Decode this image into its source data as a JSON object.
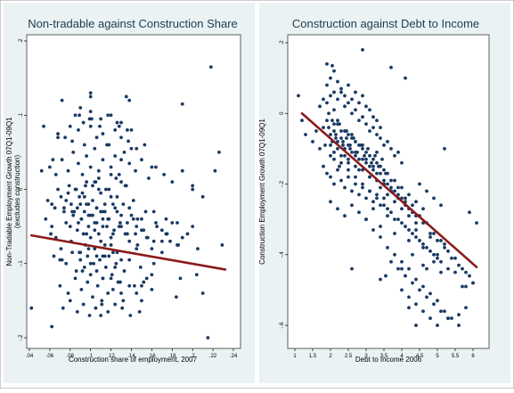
{
  "chart_data": [
    {
      "type": "scatter",
      "title": "Non-tradable against Construction Share",
      "xlabel": "Construction share of employment, 2007",
      "ylabel": "Non-Tradable Employment Growth 07Q1-09Q1",
      "ylabel2": "(excludes construction)",
      "xlim": [
        0.04,
        0.24
      ],
      "ylim": [
        -0.2,
        0.2
      ],
      "xticks": [
        0.04,
        0.06,
        0.08,
        0.1,
        0.12,
        0.14,
        0.16,
        0.18,
        0.2,
        0.22,
        0.24
      ],
      "xtick_labels": [
        ".04",
        ".06",
        ".08",
        ".1",
        ".12",
        ".14",
        ".16",
        ".18",
        ".2",
        ".22",
        ".24"
      ],
      "yticks": [
        -0.2,
        -0.1,
        0,
        0.1,
        0.2
      ],
      "ytick_labels": [
        "-.2",
        "-.1",
        "0",
        ".1",
        ".2"
      ],
      "grid": false,
      "fit_line": {
        "x": [
          0.042,
          0.232
        ],
        "y": [
          -0.062,
          -0.108
        ]
      },
      "x": [
        0.042,
        0.054,
        0.062,
        0.11,
        0.135,
        0.138,
        0.215,
        0.229,
        0.184,
        0.218,
        0.21,
        0.226,
        0.204,
        0.2,
        0.19,
        0.072,
        0.072,
        0.08,
        0.222,
        0.111,
        0.1,
        0.174,
        0.188,
        0.052,
        0.056,
        0.063,
        0.068,
        0.16,
        0.15,
        0.2,
        0.15,
        0.145,
        0.14,
        0.16,
        0.13,
        0.12,
        0.061,
        0.089,
        0.092,
        0.099,
        0.104,
        0.1,
        0.128,
        0.13,
        0.14,
        0.062,
        0.066,
        0.071,
        0.076,
        0.081,
        0.084,
        0.087,
        0.089,
        0.091,
        0.093,
        0.095,
        0.096,
        0.098,
        0.1,
        0.102,
        0.104,
        0.106,
        0.108,
        0.11,
        0.112,
        0.114,
        0.116,
        0.118,
        0.12,
        0.122,
        0.124,
        0.126,
        0.13,
        0.134,
        0.138,
        0.142,
        0.146,
        0.15,
        0.155,
        0.16,
        0.165,
        0.17,
        0.175,
        0.18,
        0.185,
        0.19,
        0.058,
        0.062,
        0.065,
        0.068,
        0.071,
        0.074,
        0.076,
        0.079,
        0.081,
        0.083,
        0.085,
        0.087,
        0.089,
        0.091,
        0.092,
        0.094,
        0.096,
        0.098,
        0.1,
        0.102,
        0.104,
        0.106,
        0.108,
        0.11,
        0.112,
        0.114,
        0.117,
        0.12,
        0.123,
        0.126,
        0.129,
        0.132,
        0.136,
        0.14,
        0.145,
        0.15,
        0.156,
        0.162,
        0.17,
        0.178,
        0.185,
        0.195,
        0.205,
        0.064,
        0.07,
        0.076,
        0.082,
        0.086,
        0.09,
        0.094,
        0.097,
        0.1,
        0.103,
        0.106,
        0.109,
        0.112,
        0.115,
        0.118,
        0.121,
        0.125,
        0.129,
        0.133,
        0.138,
        0.143,
        0.149,
        0.155,
        0.162,
        0.17,
        0.06,
        0.066,
        0.072,
        0.078,
        0.083,
        0.088,
        0.092,
        0.096,
        0.1,
        0.104,
        0.108,
        0.112,
        0.116,
        0.12,
        0.124,
        0.128,
        0.133,
        0.138,
        0.144,
        0.15,
        0.157,
        0.164,
        0.172,
        0.18,
        0.19,
        0.2,
        0.21,
        0.07,
        0.078,
        0.085,
        0.091,
        0.097,
        0.102,
        0.107,
        0.112,
        0.117,
        0.122,
        0.127,
        0.132,
        0.138,
        0.145,
        0.152,
        0.16,
        0.068,
        0.075,
        0.082,
        0.088,
        0.094,
        0.1,
        0.106,
        0.112,
        0.118,
        0.124,
        0.13,
        0.137,
        0.145,
        0.153,
        0.073,
        0.08,
        0.087,
        0.093,
        0.099,
        0.105,
        0.111,
        0.117,
        0.124,
        0.131,
        0.139,
        0.148,
        0.085,
        0.093,
        0.101,
        0.109,
        0.117,
        0.126,
        0.136,
        0.09,
        0.1,
        0.11,
        0.12,
        0.13,
        0.08,
        0.088,
        0.096,
        0.104,
        0.112,
        0.12,
        0.128,
        0.136,
        0.144,
        0.152,
        0.162,
        0.174,
        0.186,
        0.074,
        0.082,
        0.09,
        0.098,
        0.106,
        0.114,
        0.122,
        0.13,
        0.138,
        0.146,
        0.154,
        0.164,
        0.078,
        0.086,
        0.094,
        0.102,
        0.11,
        0.118,
        0.126,
        0.134,
        0.142,
        0.09,
        0.098,
        0.106,
        0.114,
        0.122,
        0.13,
        0.095,
        0.105,
        0.115,
        0.125,
        0.135,
        0.1,
        0.112,
        0.124,
        0.108,
        0.12,
        0.13
      ],
      "y": [
        -0.16,
        0.085,
        -0.185,
        -0.17,
        0.125,
        0.12,
        -0.2,
        -0.075,
        -0.145,
        0.165,
        -0.14,
        0.05,
        -0.115,
        -0.05,
        0.115,
        0.12,
        -0.095,
        0.085,
        0.025,
        -0.155,
        0.125,
        -0.04,
        -0.12,
        0.025,
        -0.04,
        0.04,
        0.07,
        -0.115,
        -0.13,
        0.0,
        -0.15,
        -0.08,
        0.08,
        0.03,
        -0.14,
        -0.12,
        -0.06,
        0.1,
        -0.11,
        0.095,
        0.01,
        0.13,
        0.085,
        0.04,
        0.055,
        -0.05,
        -0.065,
        -0.08,
        -0.045,
        -0.07,
        -0.03,
        -0.055,
        -0.085,
        -0.04,
        -0.06,
        -0.075,
        -0.02,
        -0.05,
        -0.065,
        -0.035,
        -0.08,
        -0.045,
        -0.06,
        -0.07,
        -0.03,
        -0.09,
        -0.05,
        -0.04,
        -0.075,
        -0.06,
        -0.025,
        -0.085,
        -0.05,
        -0.06,
        -0.07,
        -0.04,
        -0.075,
        -0.055,
        -0.065,
        -0.08,
        -0.05,
        -0.07,
        -0.06,
        -0.045,
        -0.075,
        -0.065,
        -0.015,
        -0.02,
        -0.025,
        0.0,
        -0.01,
        -0.03,
        -0.015,
        0.005,
        -0.02,
        -0.035,
        0.0,
        -0.025,
        -0.01,
        -0.04,
        -0.005,
        -0.03,
        0.01,
        -0.02,
        -0.035,
        -0.015,
        -0.045,
        -0.025,
        0.0,
        -0.03,
        -0.05,
        -0.02,
        -0.04,
        -0.01,
        -0.055,
        -0.03,
        -0.045,
        -0.02,
        -0.06,
        -0.035,
        -0.05,
        -0.04,
        -0.065,
        -0.03,
        -0.055,
        -0.07,
        -0.045,
        -0.06,
        -0.08,
        -0.09,
        -0.095,
        -0.1,
        -0.085,
        -0.11,
        -0.095,
        -0.105,
        -0.09,
        -0.115,
        -0.1,
        -0.11,
        -0.095,
        -0.12,
        -0.105,
        -0.09,
        -0.115,
        -0.1,
        -0.125,
        -0.11,
        -0.095,
        -0.13,
        -0.105,
        -0.12,
        -0.1,
        -0.085,
        0.03,
        0.02,
        0.04,
        0.025,
        0.05,
        0.035,
        0.02,
        0.045,
        0.03,
        0.055,
        0.025,
        0.04,
        0.06,
        0.03,
        0.045,
        0.02,
        0.05,
        0.035,
        0.025,
        0.04,
        0.015,
        0.03,
        0.02,
        0.01,
        0.025,
        0.005,
        -0.01,
        -0.13,
        -0.14,
        -0.12,
        -0.135,
        -0.125,
        -0.145,
        -0.13,
        -0.12,
        -0.14,
        -0.135,
        -0.125,
        -0.15,
        -0.13,
        -0.14,
        -0.125,
        -0.135,
        0.075,
        0.07,
        0.065,
        0.08,
        0.06,
        0.085,
        0.07,
        0.075,
        0.06,
        0.08,
        0.07,
        0.065,
        0.055,
        0.06,
        -0.16,
        -0.15,
        -0.165,
        -0.155,
        -0.17,
        -0.16,
        -0.15,
        -0.165,
        -0.155,
        -0.16,
        -0.17,
        -0.165,
        0.1,
        0.09,
        0.095,
        0.085,
        0.1,
        0.09,
        0.08,
        0.11,
        0.105,
        0.095,
        0.1,
        0.09,
        -0.05,
        -0.045,
        -0.06,
        -0.055,
        -0.04,
        -0.065,
        -0.05,
        -0.045,
        -0.06,
        -0.055,
        -0.07,
        -0.06,
        -0.075,
        -0.025,
        -0.03,
        -0.02,
        -0.035,
        -0.025,
        -0.03,
        -0.02,
        -0.035,
        -0.025,
        -0.04,
        -0.03,
        -0.045,
        -0.005,
        0.0,
        -0.01,
        0.005,
        -0.005,
        0.0,
        -0.01,
        0.005,
        -0.015,
        -0.085,
        -0.08,
        -0.09,
        -0.075,
        -0.085,
        -0.095,
        0.005,
        0.01,
        0.0,
        0.015,
        0.005,
        -0.1,
        -0.09,
        -0.105,
        0.015,
        0.02,
        0.01
      ]
    },
    {
      "type": "scatter",
      "title": "Construction against Debt to Income",
      "xlabel": "Debt to Income 2006",
      "ylabel": "Construction Employment Growth 07Q1-09Q1",
      "xlim": [
        1,
        6.25
      ],
      "ylim": [
        -0.62,
        0.21
      ],
      "xticks": [
        1,
        1.5,
        2,
        2.5,
        3,
        3.5,
        4,
        4.5,
        5,
        5.5,
        6
      ],
      "xtick_labels": [
        "1",
        "1.5",
        "2",
        "2.5",
        "3",
        "3.5",
        "4",
        "4.5",
        "5",
        "5.5",
        "6"
      ],
      "yticks": [
        -0.6,
        -0.4,
        -0.2,
        0,
        0.2
      ],
      "ytick_labels": [
        "-.6",
        "-.4",
        "-.2",
        "0",
        ".2"
      ],
      "grid": false,
      "fit_line": {
        "x": [
          1.2,
          6.1
        ],
        "y": [
          0.0,
          -0.435
        ]
      },
      "x": [
        2.9,
        1.9,
        2.1,
        2.05,
        3.7,
        4.1,
        5.2,
        5.5,
        5.7,
        5.9,
        6.1,
        4.2,
        4.4,
        5.3,
        5.6,
        5.8,
        3.4,
        3.55,
        4.0,
        4.3,
        4.6,
        4.7,
        4.9,
        5.1,
        2.6,
        1.1,
        1.2,
        1.3,
        1.5,
        1.6,
        1.7,
        1.8,
        1.85,
        1.9,
        1.95,
        2.0,
        2.0,
        2.05,
        2.1,
        2.1,
        2.15,
        2.2,
        2.2,
        2.25,
        2.3,
        2.35,
        2.4,
        2.45,
        2.5,
        2.55,
        2.6,
        2.7,
        2.8,
        2.9,
        3.0,
        3.1,
        3.2,
        3.3,
        3.4,
        3.5,
        1.7,
        1.8,
        1.9,
        2.0,
        2.1,
        2.2,
        2.3,
        2.4,
        2.5,
        2.6,
        2.7,
        2.8,
        2.9,
        3.0,
        3.1,
        3.2,
        3.3,
        3.4,
        3.5,
        3.6,
        3.7,
        3.8,
        3.9,
        4.0,
        1.8,
        1.9,
        2.0,
        2.1,
        2.2,
        2.3,
        2.4,
        2.5,
        2.6,
        2.7,
        2.8,
        2.9,
        3.0,
        3.1,
        3.2,
        3.3,
        3.4,
        3.5,
        3.6,
        3.8,
        1.9,
        2.0,
        2.1,
        2.2,
        2.3,
        2.4,
        2.5,
        2.6,
        2.7,
        2.8,
        2.9,
        3.0,
        3.1,
        3.2,
        3.3,
        3.4,
        2.0,
        2.1,
        2.2,
        2.3,
        2.4,
        2.5,
        2.6,
        2.7,
        2.8,
        2.9,
        3.0,
        3.1,
        3.2,
        3.3,
        3.4,
        3.5,
        3.6,
        3.7,
        3.8,
        3.9,
        4.0,
        4.1,
        4.2,
        4.3,
        4.4,
        2.0,
        2.2,
        2.4,
        2.6,
        2.8,
        3.0,
        3.2,
        3.4,
        3.6,
        3.8,
        4.0,
        4.2,
        4.4,
        4.6,
        4.8,
        5.0,
        5.2,
        2.5,
        2.7,
        2.9,
        3.1,
        3.3,
        3.5,
        3.7,
        3.9,
        4.1,
        4.3,
        4.5,
        4.7,
        4.9,
        5.1,
        5.3,
        5.5,
        5.7,
        5.9,
        6.0,
        3.0,
        3.2,
        3.4,
        3.6,
        3.8,
        4.0,
        4.2,
        4.4,
        4.6,
        4.8,
        5.0,
        5.2,
        5.4,
        5.6,
        5.8,
        2.1,
        2.3,
        2.5,
        2.7,
        2.9,
        3.1,
        3.3,
        3.5,
        3.7,
        3.9,
        4.1,
        2.2,
        2.4,
        2.6,
        2.8,
        3.0,
        3.2,
        3.4,
        3.6,
        3.8,
        4.0,
        4.2,
        4.4,
        4.6,
        1.95,
        2.05,
        2.15,
        2.25,
        2.35,
        2.45,
        2.55,
        2.65,
        2.75,
        2.85,
        2.95,
        3.05,
        3.15,
        3.25,
        3.35,
        3.45,
        3.55,
        2.3,
        2.5,
        2.7,
        2.9,
        3.1,
        3.3,
        3.5,
        3.7,
        3.9,
        4.1,
        4.3,
        4.5,
        4.7,
        4.9,
        5.1,
        5.3,
        3.6,
        3.8,
        4.0,
        4.2,
        4.4,
        4.6,
        4.8,
        5.0,
        5.2,
        5.4,
        5.6,
        5.8,
        6.0,
        3.7,
        3.9,
        4.1,
        4.3,
        4.5,
        4.7,
        4.9,
        5.1,
        5.3,
        4.0,
        4.2,
        4.4,
        4.6,
        4.8,
        5.0,
        4.2,
        4.4,
        4.6,
        4.8,
        5.0,
        4.5,
        4.7,
        4.9,
        5.1
      ],
      "y": [
        0.18,
        0.14,
        0.12,
        0.135,
        0.13,
        0.1,
        -0.1,
        -0.45,
        -0.49,
        -0.28,
        -0.31,
        -0.55,
        -0.6,
        -0.58,
        -0.57,
        -0.49,
        -0.47,
        -0.46,
        -0.44,
        -0.4,
        -0.43,
        -0.44,
        -0.42,
        -0.45,
        -0.44,
        0.05,
        -0.02,
        -0.06,
        -0.08,
        -0.05,
        -0.1,
        -0.04,
        -0.09,
        -0.02,
        0.0,
        -0.06,
        -0.12,
        -0.08,
        -0.03,
        -0.13,
        -0.07,
        -0.1,
        -0.02,
        -0.15,
        -0.05,
        -0.09,
        -0.12,
        -0.07,
        -0.14,
        -0.1,
        -0.06,
        -0.12,
        -0.16,
        -0.09,
        -0.13,
        -0.18,
        -0.15,
        -0.11,
        -0.17,
        -0.2,
        0.02,
        0.04,
        0.03,
        0.05,
        0.01,
        0.04,
        0.06,
        0.02,
        0.03,
        0.0,
        0.01,
        -0.02,
        -0.01,
        -0.03,
        -0.05,
        -0.04,
        -0.06,
        -0.07,
        -0.09,
        -0.08,
        -0.1,
        -0.12,
        -0.11,
        -0.14,
        -0.15,
        -0.17,
        -0.18,
        -0.2,
        -0.16,
        -0.19,
        -0.21,
        -0.18,
        -0.22,
        -0.2,
        -0.23,
        -0.21,
        -0.24,
        -0.22,
        -0.25,
        -0.23,
        -0.26,
        -0.24,
        -0.27,
        -0.3,
        0.08,
        0.1,
        0.06,
        0.09,
        0.07,
        0.05,
        0.08,
        0.04,
        0.06,
        0.03,
        0.05,
        0.02,
        0.01,
        -0.01,
        -0.02,
        -0.04,
        -0.09,
        -0.11,
        -0.08,
        -0.12,
        -0.1,
        -0.13,
        -0.11,
        -0.15,
        -0.13,
        -0.16,
        -0.14,
        -0.18,
        -0.16,
        -0.19,
        -0.21,
        -0.2,
        -0.23,
        -0.22,
        -0.25,
        -0.24,
        -0.27,
        -0.26,
        -0.29,
        -0.28,
        -0.31,
        -0.25,
        -0.27,
        -0.29,
        -0.26,
        -0.28,
        -0.3,
        -0.27,
        -0.32,
        -0.29,
        -0.34,
        -0.31,
        -0.36,
        -0.33,
        -0.38,
        -0.35,
        -0.4,
        -0.37,
        -0.06,
        -0.08,
        -0.1,
        -0.12,
        -0.14,
        -0.16,
        -0.19,
        -0.21,
        -0.24,
        -0.26,
        -0.29,
        -0.31,
        -0.34,
        -0.36,
        -0.39,
        -0.41,
        -0.44,
        -0.46,
        -0.48,
        -0.3,
        -0.33,
        -0.35,
        -0.38,
        -0.4,
        -0.42,
        -0.44,
        -0.47,
        -0.49,
        -0.51,
        -0.53,
        -0.56,
        -0.58,
        -0.6,
        -0.55,
        -0.05,
        -0.07,
        -0.09,
        -0.11,
        -0.13,
        -0.15,
        -0.17,
        -0.19,
        -0.21,
        -0.23,
        -0.25,
        -0.03,
        -0.05,
        -0.07,
        -0.09,
        -0.11,
        -0.13,
        -0.15,
        -0.17,
        -0.19,
        -0.21,
        -0.23,
        -0.25,
        -0.27,
        -0.04,
        -0.02,
        -0.06,
        -0.03,
        -0.08,
        -0.05,
        -0.09,
        -0.07,
        -0.11,
        -0.09,
        -0.12,
        -0.1,
        -0.14,
        -0.12,
        -0.15,
        -0.13,
        -0.17,
        -0.14,
        -0.16,
        -0.18,
        -0.2,
        -0.22,
        -0.24,
        -0.26,
        -0.28,
        -0.3,
        -0.32,
        -0.34,
        -0.36,
        -0.38,
        -0.4,
        -0.42,
        -0.44,
        -0.2,
        -0.22,
        -0.24,
        -0.27,
        -0.29,
        -0.31,
        -0.34,
        -0.36,
        -0.38,
        -0.41,
        -0.43,
        -0.45,
        -0.48,
        -0.42,
        -0.44,
        -0.46,
        -0.48,
        -0.5,
        -0.52,
        -0.54,
        -0.56,
        -0.58,
        -0.5,
        -0.52,
        -0.54,
        -0.56,
        -0.58,
        -0.6,
        -0.33,
        -0.35,
        -0.37,
        -0.39,
        -0.41,
        -0.2,
        -0.22,
        -0.24,
        -0.26
      ]
    }
  ]
}
